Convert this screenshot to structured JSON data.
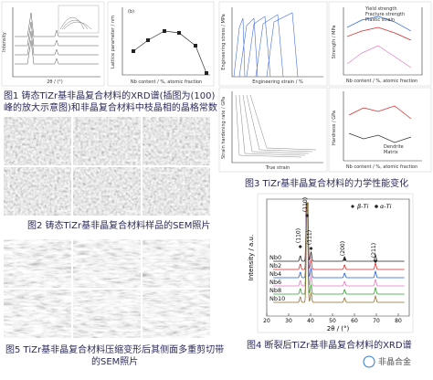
{
  "fig1": {
    "caption": [
      "图1 铸态TiZr基非晶复合材料的XRD谱(插图为(100)",
      "峰的放大示意图)和非晶复合材料中枝晶相的晶格常数"
    ],
    "xrd_xlabel": "2θ / (°)",
    "xrd_ylabel": "Intensity",
    "lp_ylabel": "Lattice parameter / nm",
    "lp_xlabel": "Nb content / %, atomic fraction",
    "panel_b": "(b)"
  },
  "fig2": {
    "caption": "图2 铸态TiZr基非晶复合材料样品的SEM照片"
  },
  "fig3": {
    "caption": "图3 TiZr基非晶复合材料的力学性能变化",
    "a_ylabel": "Engineering stress / MPa",
    "a_xlabel": "Engineering strain / %",
    "b_legend": [
      "Yield strength",
      "Fracture strength",
      "Plastic strain"
    ],
    "b_ylabel": "Strength / MPa",
    "b_xlabel": "Nb content / %, atomic fraction",
    "c_ylabel": "Strain hardening rate / GPa",
    "c_xlabel": "True strain",
    "d_ylabel": "Hardness / GPa",
    "d_legend": [
      "Dendrite",
      "Matrix"
    ],
    "d_xlabel": "Nb content / %, atomic fraction"
  },
  "fig5": {
    "caption": [
      "图5 TiZr基非晶复合材料压缩变形后其侧面多重剪切带",
      "的SEM照片"
    ]
  },
  "fig4": {
    "caption": "图4 断裂后TiZr基非晶复合材料的XRD谱",
    "xlabel": "2θ / (°)",
    "ylabel": "Intensity / a.u.",
    "xlim": [
      20,
      85
    ],
    "xticks": [
      20,
      30,
      40,
      50,
      60,
      70,
      80
    ],
    "legend": [
      "β-Ti",
      "α-Ti"
    ],
    "peaks": [
      {
        "label": "(110)",
        "x": 35.3
      },
      {
        "label": "(110)",
        "x": 38.4
      },
      {
        "label": "(111)",
        "x": 40.2
      },
      {
        "label": "(200)",
        "x": 55.5
      },
      {
        "label": "(211)",
        "x": 69.6
      }
    ],
    "series": [
      {
        "name": "Nb0",
        "color": "#222222"
      },
      {
        "name": "Nb2",
        "color": "#d62728"
      },
      {
        "name": "Nb4",
        "color": "#1f5fd6"
      },
      {
        "name": "Nb6",
        "color": "#e377c2"
      },
      {
        "name": "Nb8",
        "color": "#2ca02c"
      },
      {
        "name": "Nb10",
        "color": "#8c6d31"
      }
    ]
  },
  "watermark": "非晶合金"
}
